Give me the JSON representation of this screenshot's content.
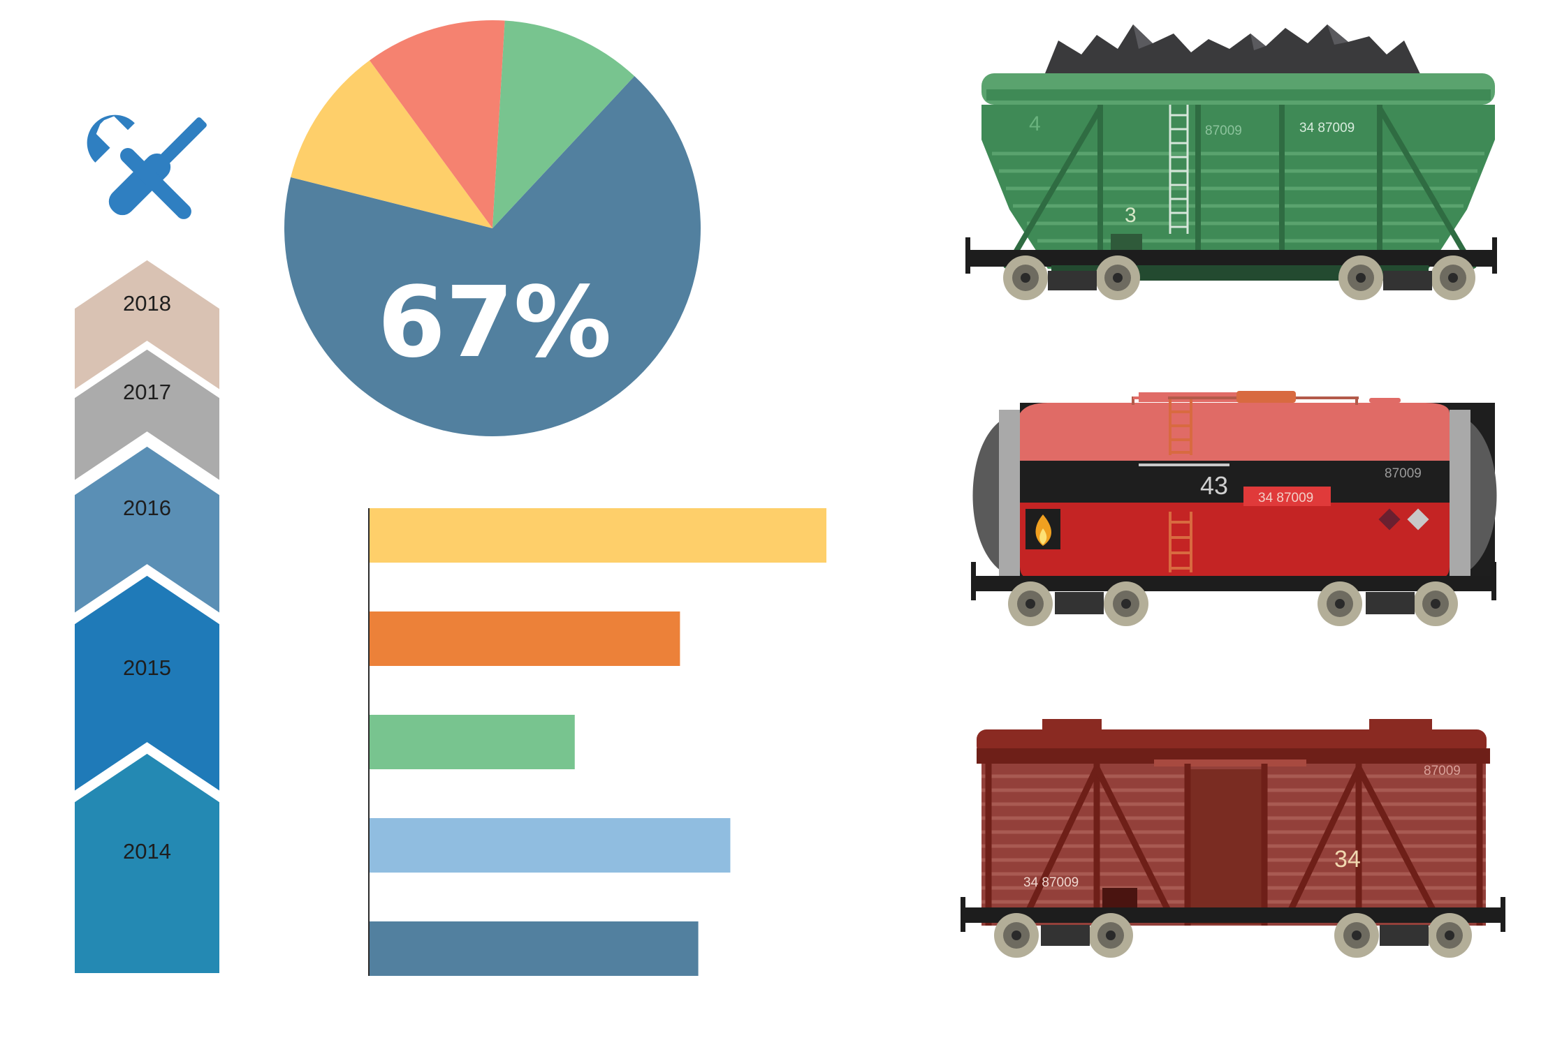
{
  "timeline": {
    "years": [
      "2018",
      "2017",
      "2016",
      "2015",
      "2014"
    ],
    "colors": [
      "#d9c2b3",
      "#ababab",
      "#5a8fb5",
      "#1f7ab8",
      "#2489b3"
    ],
    "tools_icon": "wrench-screwdriver-icon"
  },
  "chart_data": [
    {
      "type": "pie",
      "label": "67%",
      "slices": [
        {
          "value": 67,
          "color": "#52809f"
        },
        {
          "value": 11,
          "color": "#fecf6a"
        },
        {
          "value": 11,
          "color": "#f58270"
        },
        {
          "value": 11,
          "color": "#78c48f"
        }
      ]
    },
    {
      "type": "bar",
      "orientation": "horizontal",
      "values": [
        100,
        68,
        45,
        79,
        72
      ],
      "colors": [
        "#fecf6a",
        "#ec8139",
        "#78c48f",
        "#90bde0",
        "#52809f"
      ],
      "xlim": [
        0,
        100
      ]
    }
  ],
  "wagons": {
    "hopper": {
      "end_number": "4",
      "side_number": "3",
      "code": "87009",
      "full_code": "34 87009"
    },
    "tank": {
      "number": "43",
      "code": "87009",
      "full_code": "34 87009",
      "fire_icon": "flame-icon"
    },
    "boxcar": {
      "number": "34",
      "code": "87009",
      "full_code": "34 87009"
    }
  }
}
